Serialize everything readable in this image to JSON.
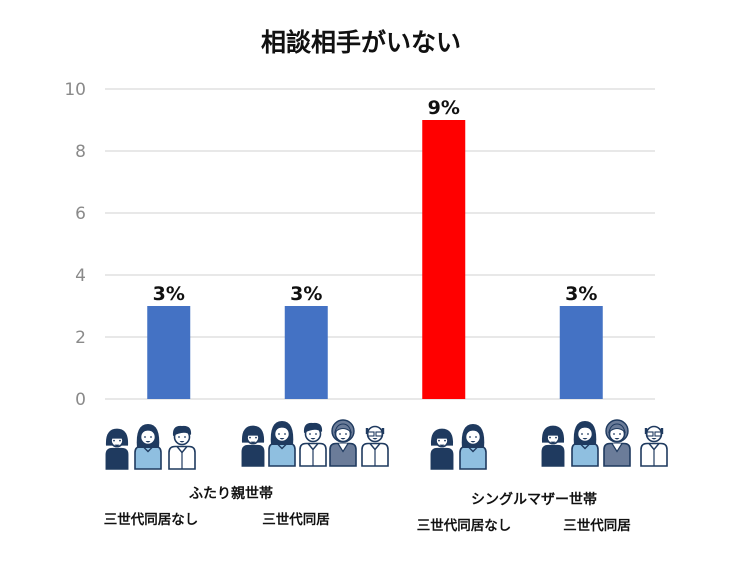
{
  "chart_data": {
    "type": "bar",
    "title": "相談相手がいない",
    "xlabel": "",
    "ylabel": "",
    "ylim": [
      0,
      10
    ],
    "yticks": [
      0,
      2,
      4,
      6,
      8,
      10
    ],
    "grid": true,
    "legend": "none",
    "categories": [
      "ふたり親世帯 三世代同居なし",
      "ふたり親世帯 三世代同居",
      "シングルマザー世帯 三世代同居なし",
      "シングルマザー世帯 三世代同居"
    ],
    "values": [
      3,
      3,
      9,
      3
    ],
    "data_labels": [
      "3%",
      "3%",
      "9%",
      "3%"
    ],
    "bar_colors": [
      "#4472C4",
      "#4472C4",
      "#FF0000",
      "#4472C4"
    ],
    "groups": [
      {
        "label": "ふたり親世帯",
        "sublabels": [
          "三世代同居なし",
          "三世代同居"
        ]
      },
      {
        "label": "シングルマザー世帯",
        "sublabels": [
          "三世代同居なし",
          "三世代同居"
        ]
      }
    ],
    "family_icons": [
      [
        "child",
        "mother",
        "father"
      ],
      [
        "child",
        "mother",
        "father",
        "grandmother",
        "grandfather"
      ],
      [
        "child",
        "mother"
      ],
      [
        "child",
        "mother",
        "grandmother",
        "grandfather"
      ]
    ]
  },
  "colors": {
    "grid": "#d9d9d9",
    "icon_dark": "#1f3a5f",
    "icon_light_blue": "#8fbfe0",
    "icon_gray_blue": "#6b7c99",
    "icon_white": "#ffffff"
  }
}
